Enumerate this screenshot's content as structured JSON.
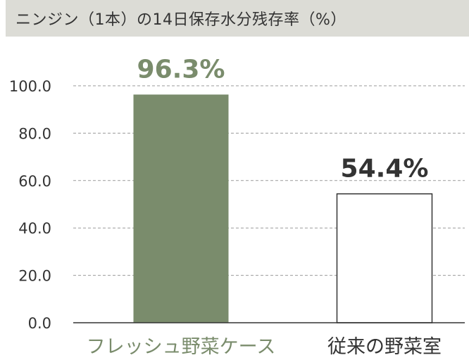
{
  "chart_data": {
    "type": "bar",
    "title": "ニンジン（1本）の14日保存水分残存率（%）",
    "categories": [
      "フレッシュ野菜ケース",
      "従来の野菜室"
    ],
    "values": [
      96.3,
      54.4
    ],
    "value_labels": [
      "96.3%",
      "54.4%"
    ],
    "y_ticks": [
      "0.0",
      "20.0",
      "40.0",
      "60.0",
      "80.0",
      "100.0"
    ],
    "ylim": [
      0,
      100
    ],
    "grid": true,
    "xlabel": "",
    "ylabel": ""
  },
  "colors": {
    "accent": "#7a8c6c",
    "text": "#333333",
    "title_bg": "#dcdcd6",
    "grid": "#9a9a9a"
  }
}
